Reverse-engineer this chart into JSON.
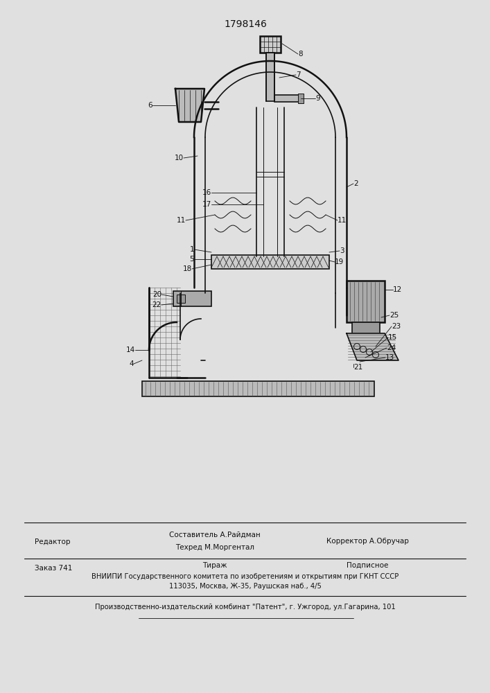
{
  "patent_number": "1798146",
  "bg_color": "#e0e0e0",
  "footer": {
    "editor_label": "Редактор",
    "composer_line1": "Составитель А.Райдман",
    "composer_line2": "Техред М.Моргентал",
    "corrector": "Корректор А.Обручар",
    "order_label": "Заказ 741",
    "tirage_label": "Тираж",
    "podpisnoe": "Подписное",
    "vniipи_line1": "ВНИИПИ Государственного комитета по изобретениям и открытиям при ГКНТ СССР",
    "vniipи_line2": "113035, Москва, Ж-35, Раушская наб., 4/5",
    "factory_line": "Производственно-издательский комбинат \"Патент\", г. Ужгород, ул.Гагарина, 101"
  }
}
